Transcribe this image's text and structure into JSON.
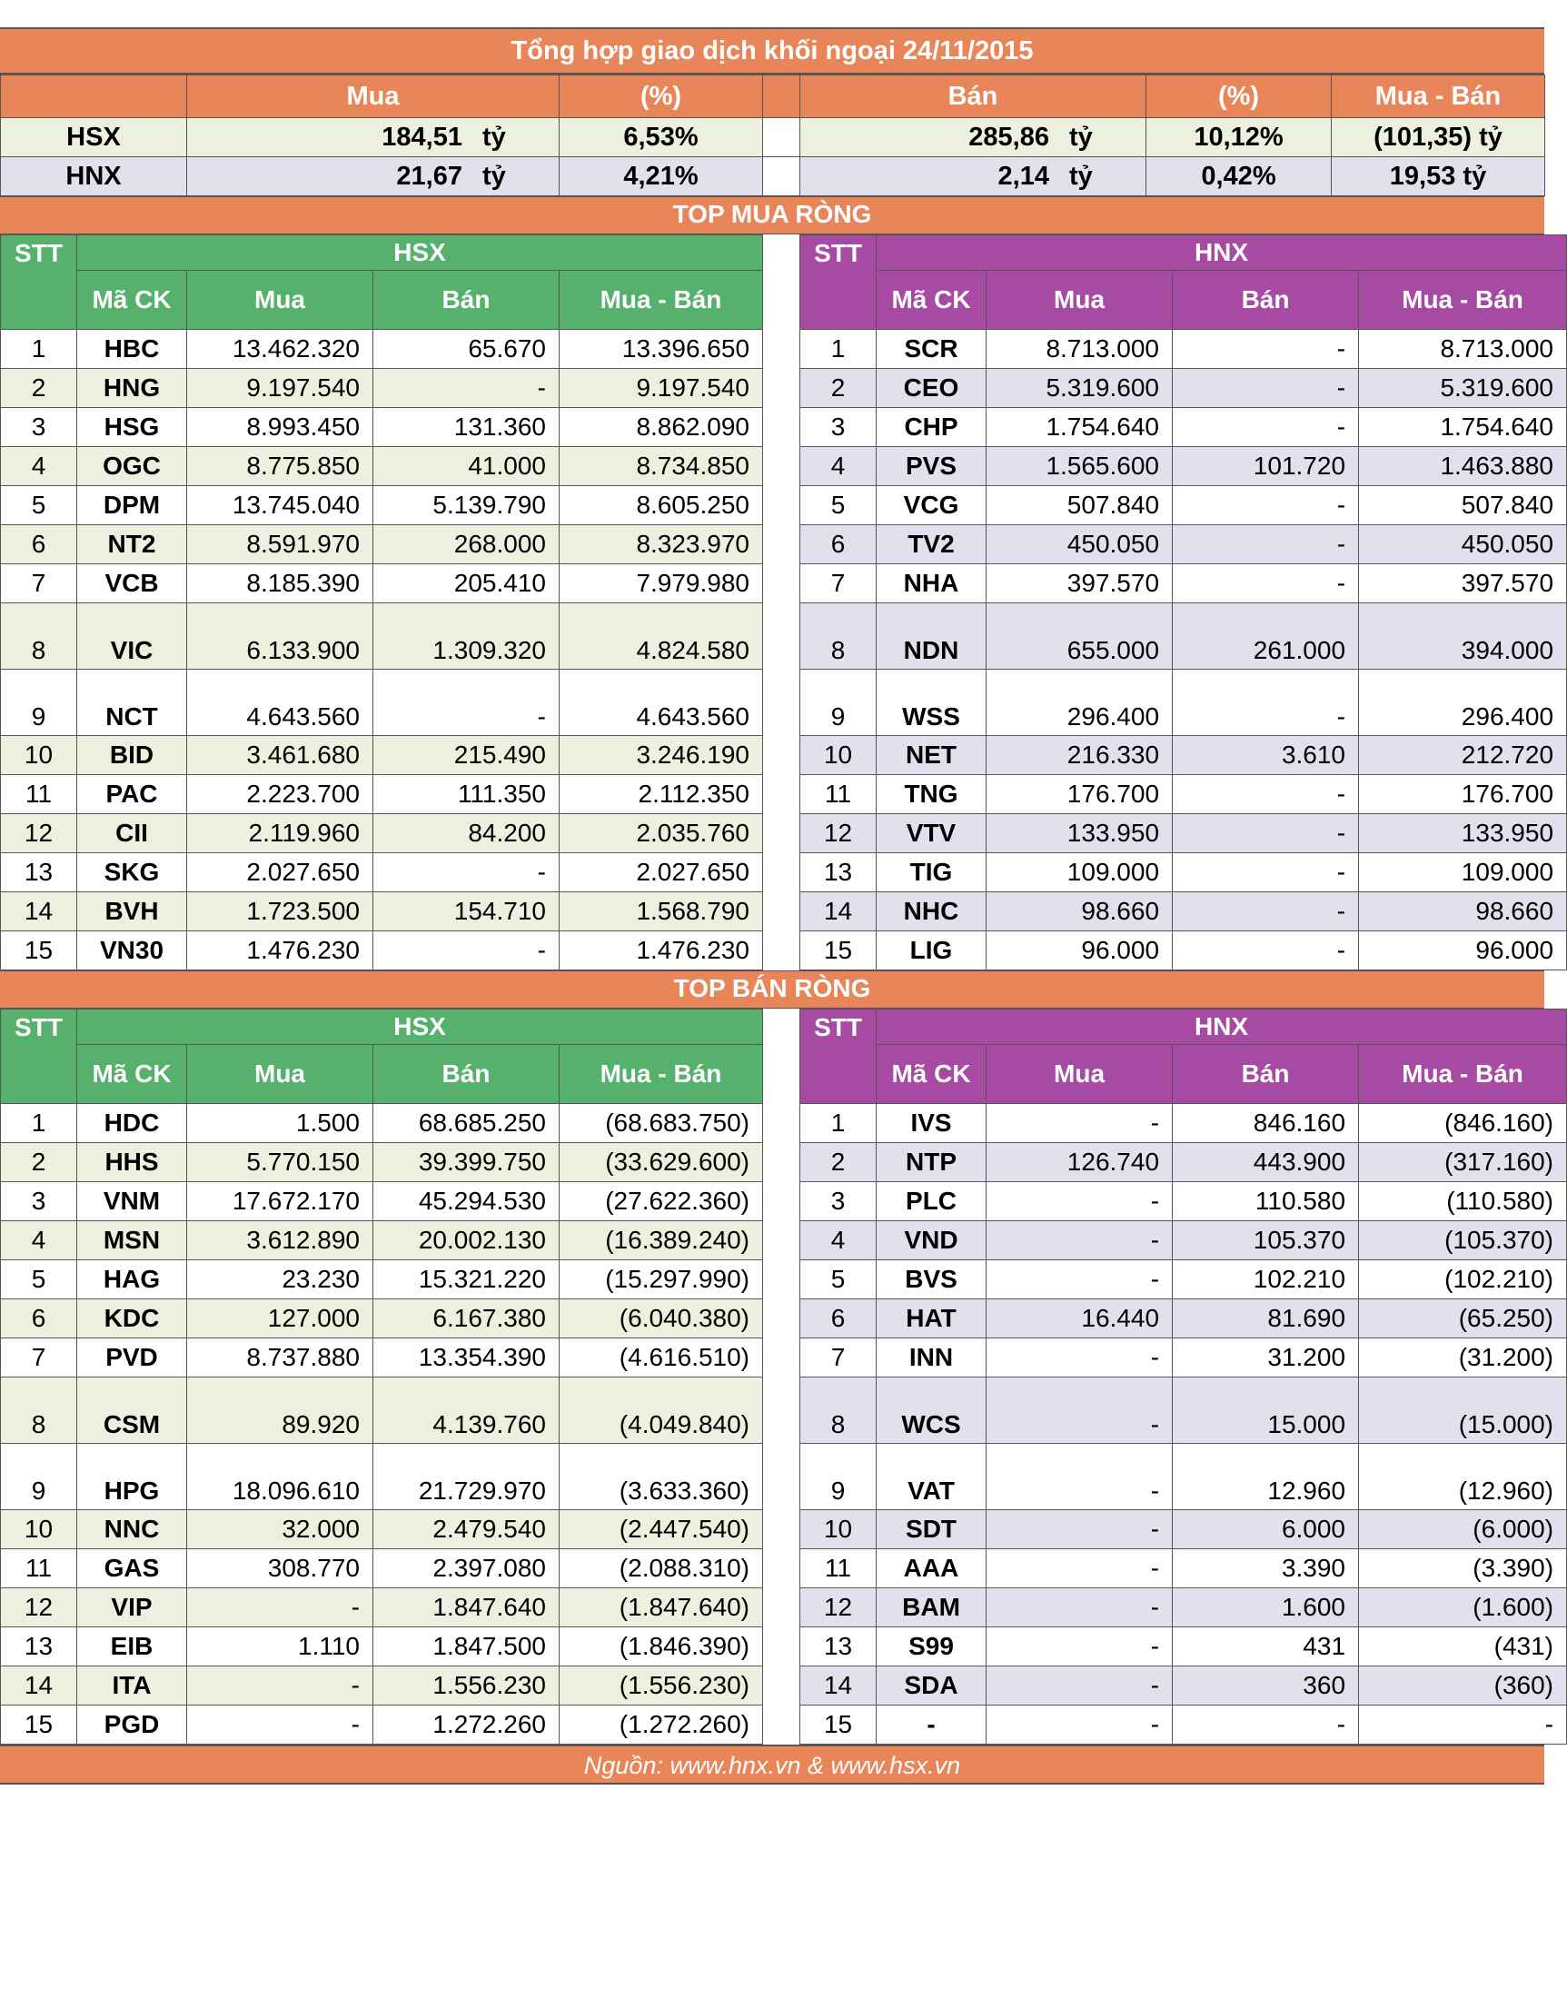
{
  "title": "Tổng hợp giao dịch khối ngoại 24/11/2015",
  "summary": {
    "headers": [
      "Mua",
      "(%)",
      "Bán",
      "(%)",
      "Mua - Bán"
    ],
    "unit": "tỷ",
    "rows": [
      {
        "exchange": "HSX",
        "buy": "184,51",
        "buy_pct": "6,53%",
        "sell": "285,86",
        "sell_pct": "10,12%",
        "net": "(101,35) tỷ"
      },
      {
        "exchange": "HNX",
        "buy": "21,67",
        "buy_pct": "4,21%",
        "sell": "2,14",
        "sell_pct": "0,42%",
        "net": "19,53 tỷ"
      }
    ]
  },
  "columns": {
    "stt": "STT",
    "hsx_code": "Mã CK",
    "hnx_code": "Mã CK",
    "buy": "Mua",
    "sell": "Bán",
    "net": "Mua - Bán",
    "hsx": "HSX",
    "hnx": "HNX"
  },
  "top_buy": {
    "title": "TOP MUA RÒNG",
    "hsx": [
      [
        "1",
        "HBC",
        "13.462.320",
        "65.670",
        "13.396.650"
      ],
      [
        "2",
        "HNG",
        "9.197.540",
        "-",
        "9.197.540"
      ],
      [
        "3",
        "HSG",
        "8.993.450",
        "131.360",
        "8.862.090"
      ],
      [
        "4",
        "OGC",
        "8.775.850",
        "41.000",
        "8.734.850"
      ],
      [
        "5",
        "DPM",
        "13.745.040",
        "5.139.790",
        "8.605.250"
      ],
      [
        "6",
        "NT2",
        "8.591.970",
        "268.000",
        "8.323.970"
      ],
      [
        "7",
        "VCB",
        "8.185.390",
        "205.410",
        "7.979.980"
      ],
      [
        "8",
        "VIC",
        "6.133.900",
        "1.309.320",
        "4.824.580"
      ],
      [
        "9",
        "NCT",
        "4.643.560",
        "-",
        "4.643.560"
      ],
      [
        "10",
        "BID",
        "3.461.680",
        "215.490",
        "3.246.190"
      ],
      [
        "11",
        "PAC",
        "2.223.700",
        "111.350",
        "2.112.350"
      ],
      [
        "12",
        "CII",
        "2.119.960",
        "84.200",
        "2.035.760"
      ],
      [
        "13",
        "SKG",
        "2.027.650",
        "-",
        "2.027.650"
      ],
      [
        "14",
        "BVH",
        "1.723.500",
        "154.710",
        "1.568.790"
      ],
      [
        "15",
        "VN30",
        "1.476.230",
        "-",
        "1.476.230"
      ]
    ],
    "hnx": [
      [
        "1",
        "SCR",
        "8.713.000",
        "-",
        "8.713.000"
      ],
      [
        "2",
        "CEO",
        "5.319.600",
        "-",
        "5.319.600"
      ],
      [
        "3",
        "CHP",
        "1.754.640",
        "-",
        "1.754.640"
      ],
      [
        "4",
        "PVS",
        "1.565.600",
        "101.720",
        "1.463.880"
      ],
      [
        "5",
        "VCG",
        "507.840",
        "-",
        "507.840"
      ],
      [
        "6",
        "TV2",
        "450.050",
        "-",
        "450.050"
      ],
      [
        "7",
        "NHA",
        "397.570",
        "-",
        "397.570"
      ],
      [
        "8",
        "NDN",
        "655.000",
        "261.000",
        "394.000"
      ],
      [
        "9",
        "WSS",
        "296.400",
        "-",
        "296.400"
      ],
      [
        "10",
        "NET",
        "216.330",
        "3.610",
        "212.720"
      ],
      [
        "11",
        "TNG",
        "176.700",
        "-",
        "176.700"
      ],
      [
        "12",
        "VTV",
        "133.950",
        "-",
        "133.950"
      ],
      [
        "13",
        "TIG",
        "109.000",
        "-",
        "109.000"
      ],
      [
        "14",
        "NHC",
        "98.660",
        "-",
        "98.660"
      ],
      [
        "15",
        "LIG",
        "96.000",
        "-",
        "96.000"
      ]
    ]
  },
  "top_sell": {
    "title": "TOP BÁN RÒNG",
    "hsx": [
      [
        "1",
        "HDC",
        "1.500",
        "68.685.250",
        "(68.683.750)"
      ],
      [
        "2",
        "HHS",
        "5.770.150",
        "39.399.750",
        "(33.629.600)"
      ],
      [
        "3",
        "VNM",
        "17.672.170",
        "45.294.530",
        "(27.622.360)"
      ],
      [
        "4",
        "MSN",
        "3.612.890",
        "20.002.130",
        "(16.389.240)"
      ],
      [
        "5",
        "HAG",
        "23.230",
        "15.321.220",
        "(15.297.990)"
      ],
      [
        "6",
        "KDC",
        "127.000",
        "6.167.380",
        "(6.040.380)"
      ],
      [
        "7",
        "PVD",
        "8.737.880",
        "13.354.390",
        "(4.616.510)"
      ],
      [
        "8",
        "CSM",
        "89.920",
        "4.139.760",
        "(4.049.840)"
      ],
      [
        "9",
        "HPG",
        "18.096.610",
        "21.729.970",
        "(3.633.360)"
      ],
      [
        "10",
        "NNC",
        "32.000",
        "2.479.540",
        "(2.447.540)"
      ],
      [
        "11",
        "GAS",
        "308.770",
        "2.397.080",
        "(2.088.310)"
      ],
      [
        "12",
        "VIP",
        "-",
        "1.847.640",
        "(1.847.640)"
      ],
      [
        "13",
        "EIB",
        "1.110",
        "1.847.500",
        "(1.846.390)"
      ],
      [
        "14",
        "ITA",
        "-",
        "1.556.230",
        "(1.556.230)"
      ],
      [
        "15",
        "PGD",
        "-",
        "1.272.260",
        "(1.272.260)"
      ]
    ],
    "hnx": [
      [
        "1",
        "IVS",
        "-",
        "846.160",
        "(846.160)"
      ],
      [
        "2",
        "NTP",
        "126.740",
        "443.900",
        "(317.160)"
      ],
      [
        "3",
        "PLC",
        "-",
        "110.580",
        "(110.580)"
      ],
      [
        "4",
        "VND",
        "-",
        "105.370",
        "(105.370)"
      ],
      [
        "5",
        "BVS",
        "-",
        "102.210",
        "(102.210)"
      ],
      [
        "6",
        "HAT",
        "16.440",
        "81.690",
        "(65.250)"
      ],
      [
        "7",
        "INN",
        "-",
        "31.200",
        "(31.200)"
      ],
      [
        "8",
        "WCS",
        "-",
        "15.000",
        "(15.000)"
      ],
      [
        "9",
        "VAT",
        "-",
        "12.960",
        "(12.960)"
      ],
      [
        "10",
        "SDT",
        "-",
        "6.000",
        "(6.000)"
      ],
      [
        "11",
        "AAA",
        "-",
        "3.390",
        "(3.390)"
      ],
      [
        "12",
        "BAM",
        "-",
        "1.600",
        "(1.600)"
      ],
      [
        "13",
        "S99",
        "-",
        "431",
        "(431)"
      ],
      [
        "14",
        "SDA",
        "-",
        "360",
        "(360)"
      ],
      [
        "15",
        "-",
        "-",
        "-",
        "-"
      ]
    ]
  },
  "footer": "Nguồn: www.hnx.vn    &    www.hsx.vn"
}
